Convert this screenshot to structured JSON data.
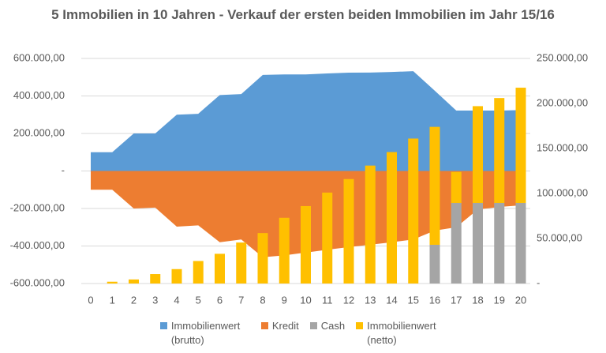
{
  "chart_data": {
    "type": "combo",
    "title": "5 Immobilien in 10 Jahren - Verkauf der ersten beiden Immobilien im Jahr 15/16",
    "categories": [
      "0",
      "1",
      "2",
      "3",
      "4",
      "5",
      "6",
      "7",
      "8",
      "9",
      "10",
      "11",
      "12",
      "13",
      "14",
      "15",
      "16",
      "17",
      "18",
      "19",
      "20"
    ],
    "ylim": [
      -600000,
      600000
    ],
    "yticks": [
      {
        "value": 600000,
        "label": "600.000,00"
      },
      {
        "value": 400000,
        "label": "400.000,00"
      },
      {
        "value": 200000,
        "label": "200.000,00"
      },
      {
        "value": 0,
        "label": "-"
      },
      {
        "value": -200000,
        "label": "-200.000,00"
      },
      {
        "value": -400000,
        "label": "-400.000,00"
      },
      {
        "value": -600000,
        "label": "-600.000,00"
      }
    ],
    "y2lim": [
      0,
      250000
    ],
    "y2ticks": [
      {
        "value": 250000,
        "label": "250.000,00"
      },
      {
        "value": 200000,
        "label": "200.000,00"
      },
      {
        "value": 150000,
        "label": "150.000,00"
      },
      {
        "value": 100000,
        "label": "100.000,00"
      },
      {
        "value": 50000,
        "label": "50.000,00"
      },
      {
        "value": 0,
        "label": "-"
      }
    ],
    "grid": true,
    "legend": "bottom",
    "series": [
      {
        "name": "Immobilienwert (brutto)",
        "type": "area",
        "color": "#5b9bd5",
        "values": [
          100000,
          100000,
          200000,
          200000,
          300000,
          305000,
          405000,
          410000,
          512000,
          515000,
          515000,
          520000,
          524000,
          525000,
          528000,
          532000,
          428000,
          322000,
          322000,
          322000,
          325000
        ]
      },
      {
        "name": "Kredit",
        "type": "area",
        "color": "#ed7d31",
        "values": [
          -100000,
          -100000,
          -200000,
          -195000,
          -297000,
          -290000,
          -380000,
          -365000,
          -460000,
          -450000,
          -435000,
          -420000,
          -406000,
          -393000,
          -380000,
          -365000,
          -318000,
          -300000,
          -205000,
          -192000,
          -183000
        ]
      },
      {
        "name": "Cash",
        "type": "bar",
        "axis": "y2",
        "color": "#a5a5a5",
        "values": [
          null,
          null,
          null,
          null,
          null,
          null,
          null,
          null,
          null,
          null,
          null,
          null,
          null,
          null,
          null,
          null,
          43000,
          89500,
          89500,
          89500,
          89500
        ]
      },
      {
        "name": "Immobilienwert (netto)",
        "type": "bar",
        "axis": "y2",
        "color": "#ffc000",
        "values": [
          null,
          2000,
          4500,
          10500,
          16000,
          25000,
          33000,
          45500,
          56000,
          73000,
          86000,
          101000,
          116000,
          131000,
          146000,
          161000,
          131000,
          34500,
          107500,
          116500,
          128000
        ]
      }
    ]
  }
}
